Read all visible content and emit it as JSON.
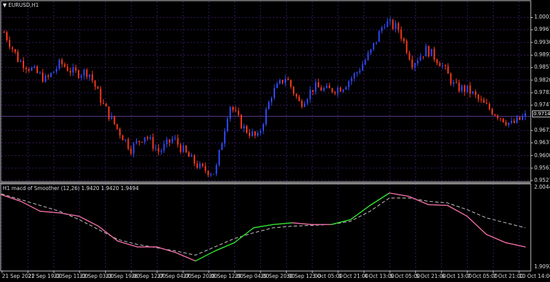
{
  "chart_title": "EURUSD,H1",
  "indicator_title": "H1  macd of Smoother (12,26) 1.9420 1.9420 1.9494",
  "colors": {
    "bull": "#2f4bff",
    "bear": "#ff3a1a",
    "grid": "#3a1a66",
    "macd": "#e86aa0",
    "macd_rising": "#33dd33",
    "signal": "#cccccc",
    "frame": "#c8c8c8"
  },
  "chart_data": [
    {
      "type": "candlestick",
      "symbol": "EURUSD",
      "timeframe": "H1",
      "current_price": "0.97144",
      "y_ticks": [
        "1.00030",
        "0.99670",
        "0.99300",
        "0.98930",
        "0.98570",
        "0.98200",
        "0.97830",
        "0.97470",
        "0.96730",
        "0.96370",
        "0.96000",
        "0.95630",
        "0.95270"
      ],
      "ylim": [
        0.9527,
        1.003
      ],
      "approx_close_path": [
        0.996,
        0.988,
        0.985,
        0.982,
        0.987,
        0.984,
        0.9845,
        0.975,
        0.968,
        0.962,
        0.966,
        0.961,
        0.965,
        0.96,
        0.956,
        0.955,
        0.975,
        0.968,
        0.965,
        0.978,
        0.983,
        0.975,
        0.98,
        0.979,
        0.98,
        0.984,
        0.99,
        0.999,
        0.997,
        0.987,
        0.991,
        0.987,
        0.98,
        0.979,
        0.975,
        0.972,
        0.969,
        0.97144
      ]
    },
    {
      "type": "line",
      "name": "macd of Smoother (12,26)",
      "y_ticks": [
        "2.0044",
        "1.9092"
      ],
      "ylim": [
        1.9092,
        2.0044
      ],
      "macd": [
        1.998,
        1.99,
        1.978,
        1.976,
        1.972,
        1.96,
        1.942,
        1.935,
        1.935,
        1.928,
        1.918,
        1.93,
        1.94,
        1.958,
        1.962,
        1.964,
        1.962,
        1.962,
        1.968,
        1.985,
        2.0,
        1.996,
        1.986,
        1.985,
        1.972,
        1.95,
        1.94,
        1.935
      ],
      "signal": [
        1.999,
        1.992,
        1.985,
        1.978,
        1.968,
        1.956,
        1.944,
        1.938,
        1.934,
        1.93,
        1.925,
        1.935,
        1.945,
        1.952,
        1.958,
        1.96,
        1.961,
        1.962,
        1.966,
        1.978,
        1.994,
        1.994,
        1.99,
        1.988,
        1.98,
        1.97,
        1.964,
        1.958
      ]
    }
  ],
  "x_ticks": [
    "21 Sep 2022",
    "21 Sep 19:00",
    "22 Sep 11:00",
    "23 Sep 03:00",
    "23 Sep 19:00",
    "26 Sep 12:00",
    "27 Sep 04:00",
    "27 Sep 20:00",
    "28 Sep 12:00",
    "29 Sep 04:00",
    "29 Sep 20:00",
    "30 Sep 12:00",
    "3 Oct 05:00",
    "3 Oct 21:00",
    "4 Oct 13:00",
    "5 Oct 05:00",
    "5 Oct 21:00",
    "6 Oct 13:00",
    "7 Oct 05:00",
    "7 Oct 21:00",
    "10 Oct 14:00"
  ]
}
